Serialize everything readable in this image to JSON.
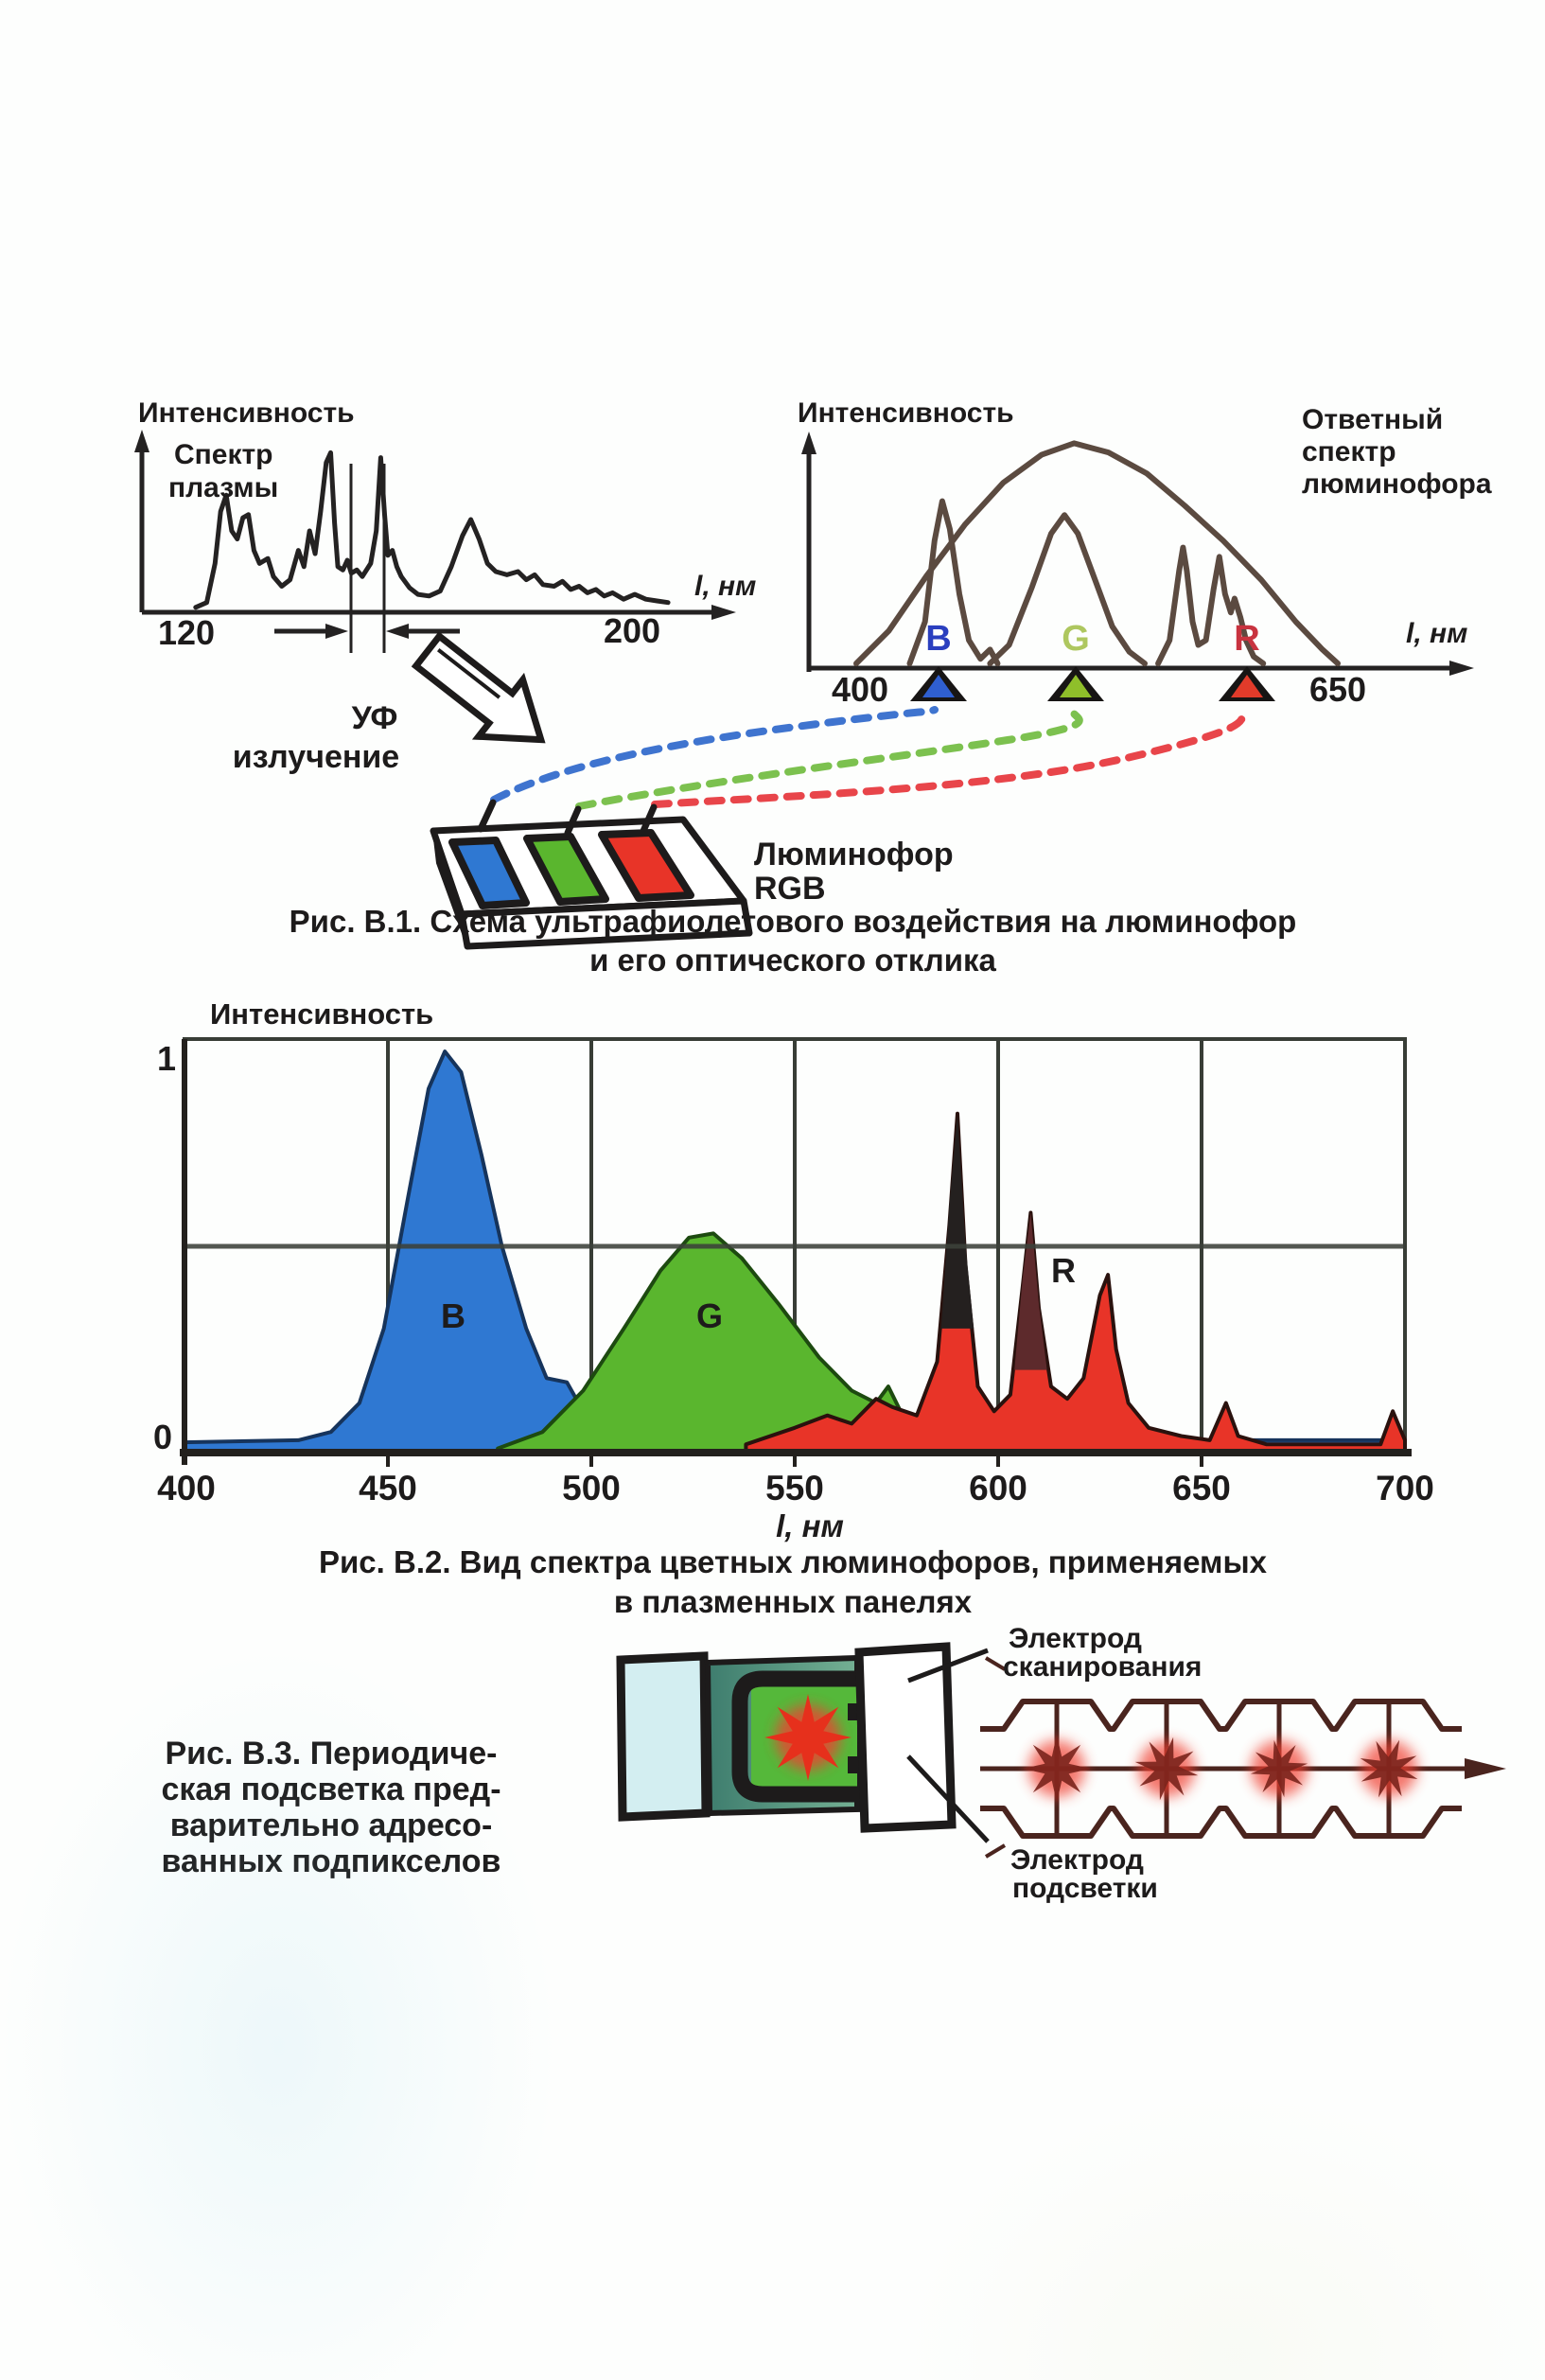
{
  "palette": {
    "ink": "#1d1b1b",
    "chart1_stroke": "#242222",
    "chart2_stroke": "#5b4a40",
    "blue_fill": "#2f78d2",
    "blue_edge": "#16345c",
    "green_fill": "#5ab62e",
    "green_edge": "#1d4a10",
    "red_fill": "#e83428",
    "red_edge": "#2a120e",
    "dark_tip": "#24201f",
    "maroon_tip": "#5d2a2c",
    "letter_b": "#2a3fbf",
    "letter_g": "#aec75f",
    "letter_r": "#c8333f",
    "tri_blue": "#2f5fd0",
    "tri_green": "#8fbf2a",
    "tri_red": "#e23b2a",
    "dash_blue": "#3f74cf",
    "dash_green": "#7cc14f",
    "dash_red": "#e8454a",
    "diagram_brown": "#4a241e",
    "glass_cyan": "#d3eef1",
    "wall_teal": "#4b8876",
    "phosphor_green": "#55b83a",
    "spark_red": "#e6301c"
  },
  "fig1": {
    "uv_lines": [
      "УФ",
      "излучение"
    ],
    "tray_label_lines": [
      "Люминофор",
      "RGB"
    ],
    "caption_lines": [
      "Рис. В.1. Схема ультрафиолетового воздействия на люминофор",
      "и его оптического отклика"
    ]
  },
  "fig2": {
    "caption_lines": [
      "Рис. В.2. Вид спектра цветных люминофоров, применяемых",
      "в плазменных панелях"
    ]
  },
  "fig3": {
    "caption_lines": [
      "Рис. В.3. Периодиче-",
      "ская подсветка пред-",
      "варительно адресо-",
      "ванных подпикселов"
    ],
    "scan_electrode_lines": [
      "Электрод",
      "сканирования"
    ],
    "backlight_electrode_lines": [
      "Электрод",
      "подсветки"
    ]
  },
  "chart_data": [
    {
      "id": "plasma",
      "type": "line",
      "ylabel": "Интенсивность",
      "annotation_lines": [
        "Спектр",
        "плазмы"
      ],
      "xlabel": "l, нм",
      "xtick_labels": [
        "120",
        "200"
      ],
      "x_range": [
        120,
        210
      ],
      "marked_band_nm": [
        150,
        156
      ],
      "points": [
        [
          122,
          0.03
        ],
        [
          124,
          0.06
        ],
        [
          125.5,
          0.3
        ],
        [
          126.5,
          0.62
        ],
        [
          127.5,
          0.72
        ],
        [
          128.5,
          0.5
        ],
        [
          129.5,
          0.45
        ],
        [
          130.5,
          0.58
        ],
        [
          131.5,
          0.6
        ],
        [
          132.5,
          0.38
        ],
        [
          133.5,
          0.3
        ],
        [
          135,
          0.33
        ],
        [
          136,
          0.22
        ],
        [
          137.5,
          0.16
        ],
        [
          139,
          0.2
        ],
        [
          140.5,
          0.38
        ],
        [
          141.5,
          0.28
        ],
        [
          142.5,
          0.5
        ],
        [
          143.5,
          0.36
        ],
        [
          144.5,
          0.62
        ],
        [
          145.5,
          0.92
        ],
        [
          146.3,
          0.98
        ],
        [
          147,
          0.55
        ],
        [
          147.6,
          0.28
        ],
        [
          148.5,
          0.26
        ],
        [
          149.3,
          0.32
        ],
        [
          150,
          0.24
        ],
        [
          151,
          0.26
        ],
        [
          152,
          0.22
        ],
        [
          153.5,
          0.3
        ],
        [
          154.5,
          0.5
        ],
        [
          155.3,
          0.95
        ],
        [
          156,
          0.6
        ],
        [
          156.6,
          0.35
        ],
        [
          157.4,
          0.38
        ],
        [
          158.2,
          0.28
        ],
        [
          159,
          0.22
        ],
        [
          160.5,
          0.15
        ],
        [
          162,
          0.11
        ],
        [
          164,
          0.1
        ],
        [
          166,
          0.13
        ],
        [
          168,
          0.28
        ],
        [
          170,
          0.47
        ],
        [
          171.5,
          0.57
        ],
        [
          173,
          0.45
        ],
        [
          174.5,
          0.3
        ],
        [
          176,
          0.25
        ],
        [
          178,
          0.23
        ],
        [
          180,
          0.25
        ],
        [
          181.5,
          0.2
        ],
        [
          183,
          0.23
        ],
        [
          184.5,
          0.17
        ],
        [
          186.5,
          0.16
        ],
        [
          188,
          0.19
        ],
        [
          189.5,
          0.14
        ],
        [
          191,
          0.16
        ],
        [
          192.5,
          0.12
        ],
        [
          194,
          0.14
        ],
        [
          195.5,
          0.1
        ],
        [
          197,
          0.12
        ],
        [
          199,
          0.08
        ],
        [
          201,
          0.11
        ],
        [
          203,
          0.08
        ],
        [
          205,
          0.07
        ],
        [
          207,
          0.06
        ]
      ]
    },
    {
      "id": "response",
      "type": "line",
      "ylabel": "Интенсивность",
      "right_label_lines": [
        "Ответный",
        "спектр",
        "люминофора"
      ],
      "xlabel": "l, нм",
      "xtick_labels": [
        "400",
        "650"
      ],
      "markers": [
        {
          "label": "B",
          "nm": 441
        },
        {
          "label": "G",
          "nm": 513
        },
        {
          "label": "R",
          "nm": 602
        }
      ],
      "curves": {
        "envelope": [
          [
            398,
            0.02
          ],
          [
            415,
            0.16
          ],
          [
            435,
            0.4
          ],
          [
            455,
            0.62
          ],
          [
            475,
            0.8
          ],
          [
            495,
            0.92
          ],
          [
            512,
            0.97
          ],
          [
            530,
            0.93
          ],
          [
            550,
            0.84
          ],
          [
            570,
            0.7
          ],
          [
            590,
            0.55
          ],
          [
            610,
            0.38
          ],
          [
            628,
            0.2
          ],
          [
            642,
            0.08
          ],
          [
            650,
            0.02
          ]
        ],
        "blue_peak": [
          [
            426,
            0.02
          ],
          [
            434,
            0.2
          ],
          [
            439,
            0.55
          ],
          [
            443,
            0.72
          ],
          [
            447,
            0.6
          ],
          [
            452,
            0.32
          ],
          [
            457,
            0.12
          ],
          [
            463,
            0.04
          ],
          [
            468,
            0.08
          ],
          [
            472,
            0.02
          ]
        ],
        "green_peak": [
          [
            468,
            0.02
          ],
          [
            478,
            0.1
          ],
          [
            490,
            0.35
          ],
          [
            500,
            0.58
          ],
          [
            507,
            0.66
          ],
          [
            514,
            0.58
          ],
          [
            523,
            0.38
          ],
          [
            532,
            0.18
          ],
          [
            541,
            0.07
          ],
          [
            549,
            0.02
          ]
        ],
        "red_peaks": [
          [
            556,
            0.02
          ],
          [
            562,
            0.12
          ],
          [
            567,
            0.42
          ],
          [
            569,
            0.52
          ],
          [
            571,
            0.42
          ],
          [
            574,
            0.2
          ],
          [
            577,
            0.1
          ],
          [
            581,
            0.12
          ],
          [
            585,
            0.34
          ],
          [
            588,
            0.48
          ],
          [
            591,
            0.32
          ],
          [
            594,
            0.24
          ],
          [
            596,
            0.3
          ],
          [
            599,
            0.22
          ],
          [
            602,
            0.12
          ],
          [
            606,
            0.05
          ],
          [
            611,
            0.02
          ]
        ]
      }
    },
    {
      "id": "phosphors",
      "type": "area",
      "ylabel": "Интенсивность",
      "xlabel": "l, нм",
      "xtick_labels": [
        "400",
        "450",
        "500",
        "550",
        "600",
        "650",
        "700"
      ],
      "yticks": [
        "0",
        "1"
      ],
      "ylim": [
        0,
        1
      ],
      "grid": true,
      "series": [
        {
          "name": "B",
          "color": "blue",
          "points": [
            [
              400,
              0.025
            ],
            [
              428,
              0.03
            ],
            [
              436,
              0.05
            ],
            [
              443,
              0.12
            ],
            [
              449,
              0.3
            ],
            [
              455,
              0.62
            ],
            [
              460,
              0.88
            ],
            [
              464,
              0.97
            ],
            [
              468,
              0.92
            ],
            [
              473,
              0.72
            ],
            [
              478,
              0.5
            ],
            [
              484,
              0.3
            ],
            [
              489,
              0.18
            ],
            [
              494,
              0.17
            ],
            [
              498,
              0.1
            ],
            [
              504,
              0.06
            ],
            [
              512,
              0.04
            ],
            [
              525,
              0.03
            ],
            [
              560,
              0.03
            ],
            [
              600,
              0.035
            ],
            [
              650,
              0.03
            ],
            [
              700,
              0.03
            ]
          ]
        },
        {
          "name": "G",
          "color": "green",
          "points": [
            [
              477,
              0.01
            ],
            [
              488,
              0.05
            ],
            [
              498,
              0.15
            ],
            [
              508,
              0.3
            ],
            [
              517,
              0.44
            ],
            [
              524,
              0.52
            ],
            [
              530,
              0.53
            ],
            [
              537,
              0.47
            ],
            [
              546,
              0.36
            ],
            [
              556,
              0.23
            ],
            [
              564,
              0.15
            ],
            [
              570,
              0.12
            ],
            [
              573,
              0.16
            ],
            [
              576,
              0.1
            ],
            [
              581,
              0.05
            ],
            [
              589,
              0.02
            ],
            [
              598,
              0.01
            ]
          ]
        },
        {
          "name": "R",
          "color": "red",
          "points": [
            [
              538,
              0.02
            ],
            [
              550,
              0.06
            ],
            [
              558,
              0.09
            ],
            [
              564,
              0.07
            ],
            [
              570,
              0.13
            ],
            [
              574,
              0.11
            ],
            [
              580,
              0.09
            ],
            [
              585,
              0.22
            ],
            [
              588,
              0.55
            ],
            [
              590,
              0.82
            ],
            [
              592,
              0.45
            ],
            [
              595,
              0.16
            ],
            [
              599,
              0.1
            ],
            [
              603,
              0.14
            ],
            [
              606,
              0.4
            ],
            [
              608,
              0.58
            ],
            [
              610,
              0.35
            ],
            [
              613,
              0.16
            ],
            [
              617,
              0.13
            ],
            [
              621,
              0.18
            ],
            [
              625,
              0.38
            ],
            [
              627,
              0.43
            ],
            [
              629,
              0.25
            ],
            [
              632,
              0.12
            ],
            [
              637,
              0.06
            ],
            [
              645,
              0.04
            ],
            [
              652,
              0.03
            ],
            [
              656,
              0.12
            ],
            [
              659,
              0.04
            ],
            [
              666,
              0.02
            ],
            [
              680,
              0.02
            ],
            [
              694,
              0.02
            ],
            [
              697,
              0.1
            ],
            [
              700,
              0.03
            ]
          ]
        }
      ],
      "series_labels": [
        {
          "text": "B",
          "nm": 466,
          "v": 0.3
        },
        {
          "text": "G",
          "nm": 529,
          "v": 0.3
        },
        {
          "text": "R",
          "nm": 616,
          "v": 0.42
        }
      ],
      "dark_tips": [
        {
          "color_key": "dark_tip",
          "points": [
            [
              586,
              0.3
            ],
            [
              588,
              0.6
            ],
            [
              590,
              0.82
            ],
            [
              592,
              0.5
            ],
            [
              594,
              0.3
            ]
          ]
        },
        {
          "color_key": "maroon_tip",
          "points": [
            [
              604,
              0.2
            ],
            [
              606,
              0.42
            ],
            [
              608,
              0.58
            ],
            [
              610,
              0.36
            ],
            [
              612,
              0.2
            ]
          ]
        }
      ]
    }
  ]
}
